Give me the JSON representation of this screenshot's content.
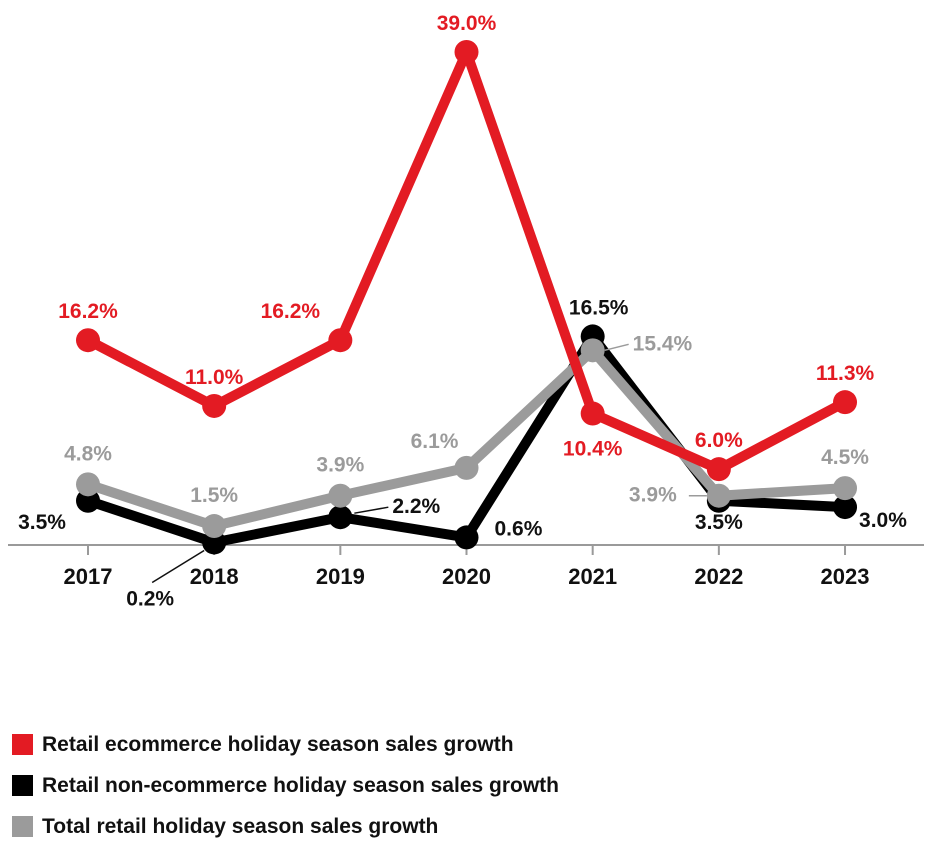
{
  "chart_data": {
    "type": "line",
    "categories": [
      "2017",
      "2018",
      "2019",
      "2020",
      "2021",
      "2022",
      "2023"
    ],
    "ylim": [
      0,
      39
    ],
    "grid": false,
    "legend_position": "bottom-left",
    "series": [
      {
        "key": "ecommerce",
        "name": "Retail ecommerce holiday season sales growth",
        "color": "#e31b23",
        "values": [
          16.2,
          11.0,
          16.2,
          39.0,
          10.4,
          6.0,
          11.3
        ],
        "labels": [
          "16.2%",
          "11.0%",
          "16.2%",
          "39.0%",
          "10.4%",
          "6.0%",
          "11.3%"
        ]
      },
      {
        "key": "non_ecommerce",
        "name": "Retail non-ecommerce holiday season sales growth",
        "color": "#000000",
        "values": [
          3.5,
          0.2,
          2.2,
          0.6,
          16.5,
          3.5,
          3.0
        ],
        "labels": [
          "3.5%",
          "0.2%",
          "2.2%",
          "0.6%",
          "16.5%",
          "3.5%",
          "3.0%"
        ]
      },
      {
        "key": "total",
        "name": "Total retail holiday season sales growth",
        "color": "#9b9b9b",
        "values": [
          4.8,
          1.5,
          3.9,
          6.1,
          15.4,
          3.9,
          4.5
        ],
        "labels": [
          "4.8%",
          "1.5%",
          "3.9%",
          "6.1%",
          "15.4%",
          "3.9%",
          "4.5%"
        ]
      }
    ]
  }
}
